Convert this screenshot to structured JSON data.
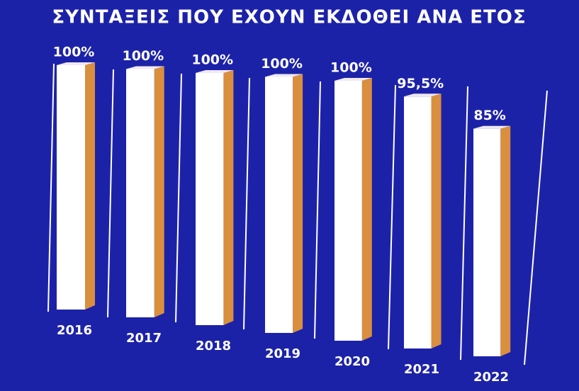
{
  "chart_data": {
    "type": "bar3d",
    "title": "ΣΥΝΤΑΞΕΙΣ ΠΟΥ ΕΧΟΥΝ ΕΚΔΟΘΕΙ ΑΝΑ ΕΤΟΣ",
    "categories": [
      "2016",
      "2017",
      "2018",
      "2019",
      "2020",
      "2021",
      "2022"
    ],
    "values": [
      100,
      100,
      100,
      100,
      100,
      95.5,
      85
    ],
    "value_labels": [
      "100%",
      "100%",
      "100%",
      "100%",
      "100%",
      "95,5%",
      "85%"
    ],
    "color": "#ffffff",
    "side_color": "#d98f3e"
  }
}
